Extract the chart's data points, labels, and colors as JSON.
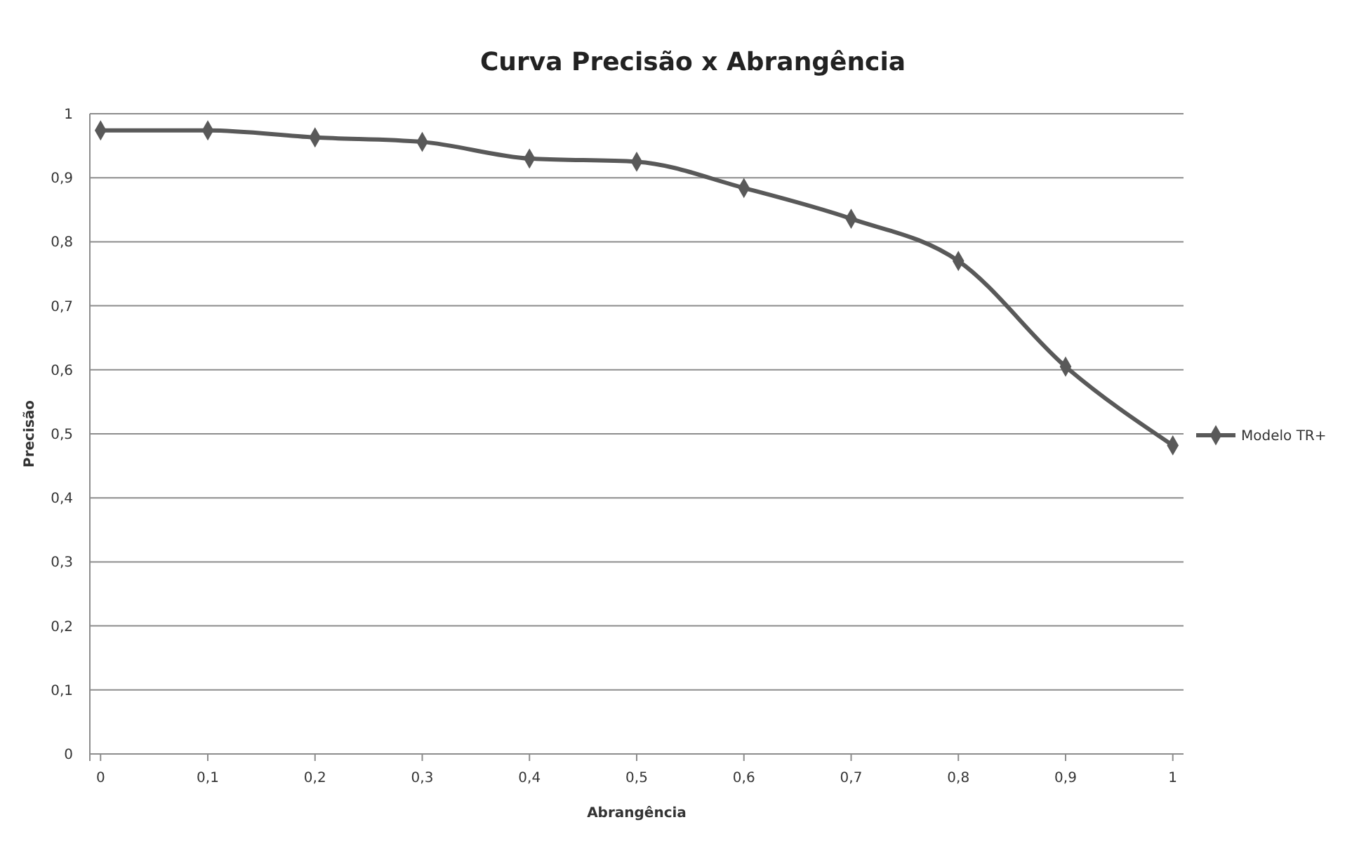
{
  "chart_data": {
    "type": "line",
    "title": "Curva Precisão x Abrangência",
    "xlabel": "Abrangência",
    "ylabel": "Precisão",
    "x": [
      0,
      0.1,
      0.2,
      0.3,
      0.4,
      0.5,
      0.6,
      0.7,
      0.8,
      0.9,
      1
    ],
    "series": [
      {
        "name": "Modelo TR+",
        "color": "#595959",
        "values": [
          0.974,
          0.974,
          0.963,
          0.956,
          0.93,
          0.925,
          0.884,
          0.836,
          0.77,
          0.605,
          0.482
        ]
      }
    ],
    "xlim": [
      -0.01,
      1.01
    ],
    "ylim": [
      0,
      1
    ],
    "xticks": [
      0,
      {
        "value": 0.1,
        "label": "0,1"
      },
      {
        "value": 0.2,
        "label": "0,2"
      },
      {
        "value": 0.3,
        "label": "0,3"
      },
      {
        "value": 0.4,
        "label": "0,4"
      },
      {
        "value": 0.5,
        "label": "0,5"
      },
      {
        "value": 0.6,
        "label": "0,6"
      },
      {
        "value": 0.7,
        "label": "0,7"
      },
      {
        "value": 0.8,
        "label": "0,8"
      },
      {
        "value": 0.9,
        "label": "0,9"
      },
      1
    ],
    "yticks": [
      0,
      {
        "value": 0.1,
        "label": "0,1"
      },
      {
        "value": 0.2,
        "label": "0,2"
      },
      {
        "value": 0.3,
        "label": "0,3"
      },
      {
        "value": 0.4,
        "label": "0,4"
      },
      {
        "value": 0.5,
        "label": "0,5"
      },
      {
        "value": 0.6,
        "label": "0,6"
      },
      {
        "value": 0.7,
        "label": "0,7"
      },
      {
        "value": 0.8,
        "label": "0,8"
      },
      {
        "value": 0.9,
        "label": "0,9"
      },
      1
    ],
    "grid": "y",
    "legend": "right",
    "marker": "diamond",
    "line_style": "solid"
  }
}
